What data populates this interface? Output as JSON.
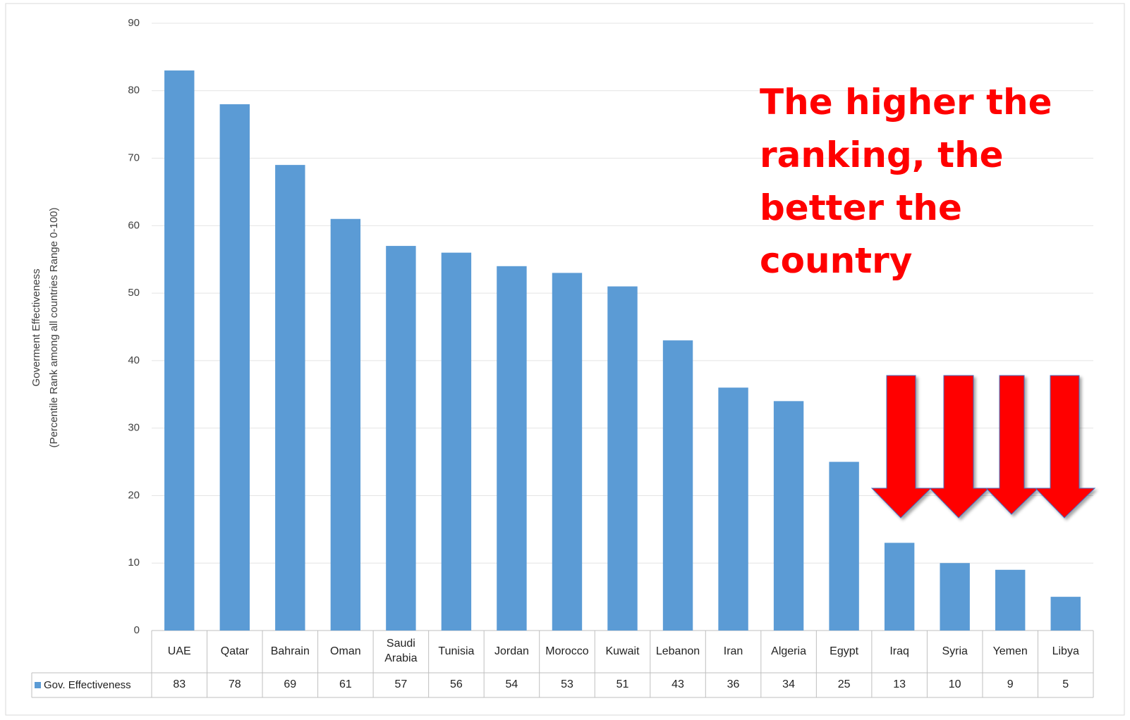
{
  "chart_data": {
    "type": "bar",
    "y_label": [
      "Goverment Effectiveness",
      "(Percentile Rank among all countries Range 0-100)"
    ],
    "categories": [
      "UAE",
      "Qatar",
      "Bahrain",
      "Oman",
      "Saudi Arabia",
      "Tunisia",
      "Jordan",
      "Morocco",
      "Kuwait",
      "Lebanon",
      "Iran",
      "Algeria",
      "Egypt",
      "Iraq",
      "Syria",
      "Yemen",
      "Libya"
    ],
    "series": [
      {
        "name": "Gov. Effectiveness",
        "color": "#5b9bd5",
        "values": [
          83,
          78,
          69,
          61,
          57,
          56,
          54,
          53,
          51,
          43,
          36,
          34,
          25,
          13,
          10,
          9,
          5
        ]
      }
    ],
    "ylim": [
      0,
      90
    ],
    "yticks": [
      0,
      10,
      20,
      30,
      40,
      50,
      60,
      70,
      80,
      90
    ],
    "grid": true,
    "annotation": [
      "The higher the",
      "ranking, the",
      "better the",
      "country"
    ]
  }
}
